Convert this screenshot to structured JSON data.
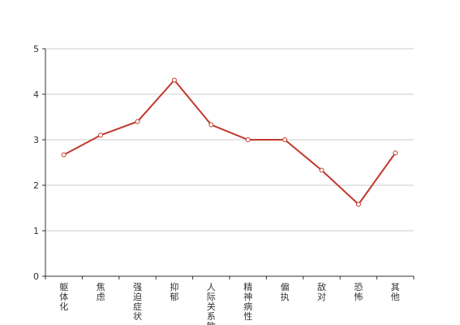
{
  "chart_data": {
    "type": "line",
    "title": "",
    "xlabel": "",
    "ylabel": "",
    "ylim": [
      0,
      5
    ],
    "yticks": [
      0,
      1,
      2,
      3,
      4,
      5
    ],
    "grid": true,
    "categories": [
      "躯体化",
      "焦虑",
      "强迫症状",
      "抑郁",
      "人际关系敏感",
      "精神病性",
      "偏执",
      "敌对",
      "恐怖",
      "其他"
    ],
    "series": [
      {
        "values": [
          2.67,
          3.1,
          3.4,
          4.31,
          3.33,
          3.0,
          3.0,
          2.33,
          1.58,
          2.71
        ],
        "color": "#c0392b"
      }
    ]
  }
}
